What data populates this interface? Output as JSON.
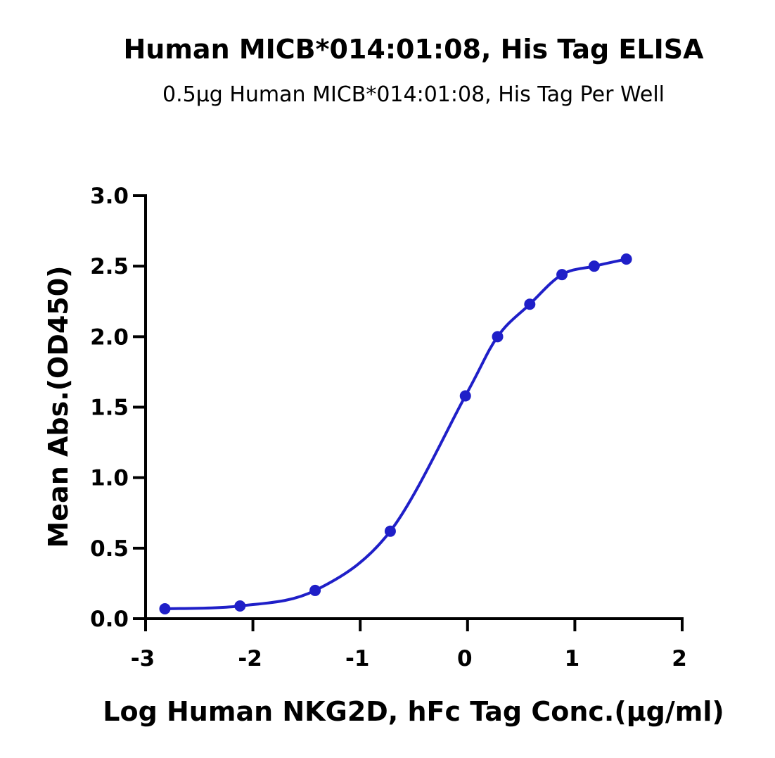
{
  "chart_data": {
    "type": "scatter",
    "title": "Human MICB*014:01:08, His Tag ELISA",
    "subtitle": "0.5μg Human MICB*014:01:08, His Tag Per Well",
    "xlabel": "Log Human NKG2D, hFc Tag Conc.(μg/ml)",
    "ylabel": "Mean Abs.(OD450)",
    "xlim": [
      -3,
      2
    ],
    "ylim": [
      0,
      3.0
    ],
    "xticks": [
      "-3",
      "-2",
      "-1",
      "0",
      "1",
      "2"
    ],
    "xtick_values": [
      -3,
      -2,
      -1,
      0,
      1,
      2
    ],
    "yticks": [
      "0.0",
      "0.5",
      "1.0",
      "1.5",
      "2.0",
      "2.5",
      "3.0"
    ],
    "ytick_values": [
      0,
      0.5,
      1.0,
      1.5,
      2.0,
      2.5,
      3.0
    ],
    "grid": false,
    "legend": "none",
    "color": "#1f1fc8",
    "series": [
      {
        "x": [
          -2.82,
          -2.12,
          -1.42,
          -0.72,
          -0.02,
          0.28,
          0.58,
          0.88,
          1.18,
          1.48
        ],
        "y": [
          0.07,
          0.09,
          0.2,
          0.62,
          1.58,
          2.0,
          2.23,
          2.44,
          2.5,
          2.55
        ],
        "fit": "four-parameter logistic"
      }
    ]
  }
}
